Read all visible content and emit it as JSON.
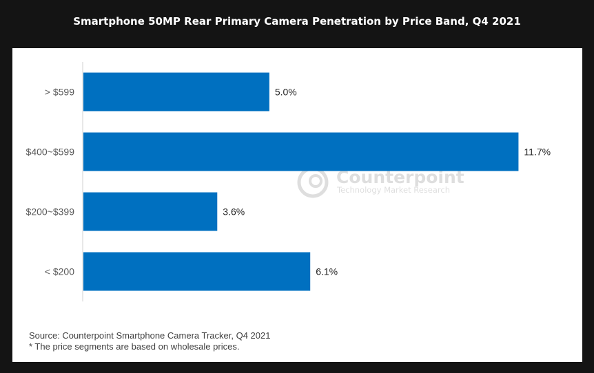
{
  "title": "Smartphone 50MP Rear Primary Camera Penetration by Price Band, Q4 2021",
  "chart_data": {
    "type": "bar",
    "orientation": "horizontal",
    "categories": [
      "> $599",
      "$400~$599",
      "$200~$399",
      "< $200"
    ],
    "values": [
      5.0,
      11.7,
      3.6,
      6.1
    ],
    "value_labels": [
      "5.0%",
      "11.7%",
      "3.6%",
      "6.1%"
    ],
    "unit": "%",
    "xlim": [
      0,
      12.6
    ],
    "grid": false,
    "legend": "none",
    "bar_color": "#0070c0"
  },
  "watermark": {
    "brand": "Counterpoint",
    "tagline": "Technology Market Research"
  },
  "source": "Source: Counterpoint Smartphone Camera Tracker, Q4 2021",
  "footnote": "* The price segments are based on wholesale prices."
}
